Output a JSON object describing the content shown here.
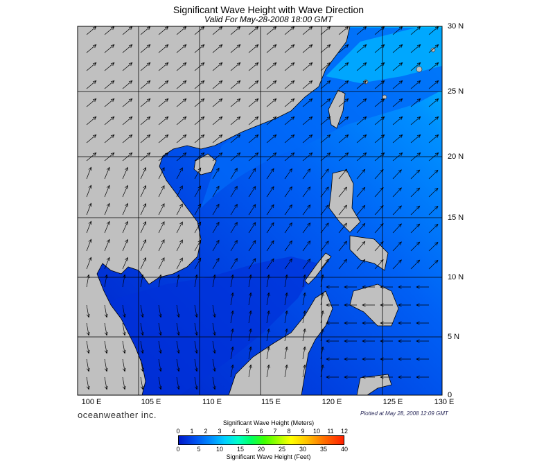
{
  "title": "Significant Wave Height with Wave Direction",
  "subtitle": "Valid For May-28-2008 18:00 GMT",
  "map": {
    "lat_labels": [
      "30 N",
      "25 N",
      "20 N",
      "15 N",
      "10 N",
      "5 N",
      "0"
    ],
    "lon_labels": [
      "100 E",
      "105 E",
      "110 E",
      "115 E",
      "120 E",
      "125 E",
      "130 E"
    ],
    "colors": {
      "land": "#c0c0c0",
      "sea_low": "#0018c8",
      "sea_mid": "#0050f0",
      "sea_high": "#0090ff",
      "sea_peak": "#00c8ff",
      "grid": "#000000"
    }
  },
  "brand": "oceanweather inc.",
  "plotted": "Plotted at May 28, 2008 12:09 GMT",
  "colorbar": {
    "meters_title": "Significant Wave Height (Meters)",
    "meters_ticks": [
      "0",
      "1",
      "2",
      "3",
      "4",
      "5",
      "6",
      "7",
      "8",
      "9",
      "10",
      "11",
      "12"
    ],
    "feet_title": "Significant Wave Height (Feet)",
    "feet_ticks": [
      "0",
      "5",
      "10",
      "15",
      "20",
      "25",
      "30",
      "35",
      "40"
    ]
  }
}
